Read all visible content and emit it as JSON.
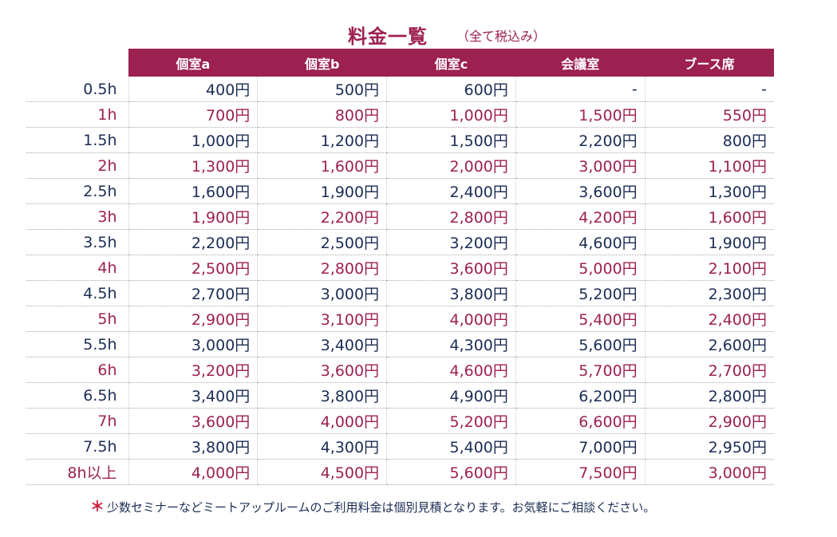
{
  "header": {
    "title": "料金一覧",
    "tax_note": "（全て税込み）"
  },
  "columns": [
    "個室a",
    "個室b",
    "個室c",
    "会議室",
    "ブース席"
  ],
  "rows": [
    {
      "duration": "0.5h",
      "values": [
        "400円",
        "500円",
        "600円",
        "-",
        "-"
      ]
    },
    {
      "duration": "1h",
      "values": [
        "700円",
        "800円",
        "1,000円",
        "1,500円",
        "550円"
      ]
    },
    {
      "duration": "1.5h",
      "values": [
        "1,000円",
        "1,200円",
        "1,500円",
        "2,200円",
        "800円"
      ]
    },
    {
      "duration": "2h",
      "values": [
        "1,300円",
        "1,600円",
        "2,000円",
        "3,000円",
        "1,100円"
      ]
    },
    {
      "duration": "2.5h",
      "values": [
        "1,600円",
        "1,900円",
        "2,400円",
        "3,600円",
        "1,300円"
      ]
    },
    {
      "duration": "3h",
      "values": [
        "1,900円",
        "2,200円",
        "2,800円",
        "4,200円",
        "1,600円"
      ]
    },
    {
      "duration": "3.5h",
      "values": [
        "2,200円",
        "2,500円",
        "3,200円",
        "4,600円",
        "1,900円"
      ]
    },
    {
      "duration": "4h",
      "values": [
        "2,500円",
        "2,800円",
        "3,600円",
        "5,000円",
        "2,100円"
      ]
    },
    {
      "duration": "4.5h",
      "values": [
        "2,700円",
        "3,000円",
        "3,800円",
        "5,200円",
        "2,300円"
      ]
    },
    {
      "duration": "5h",
      "values": [
        "2,900円",
        "3,100円",
        "4,000円",
        "5,400円",
        "2,400円"
      ]
    },
    {
      "duration": "5.5h",
      "values": [
        "3,000円",
        "3,400円",
        "4,300円",
        "5,600円",
        "2,600円"
      ]
    },
    {
      "duration": "6h",
      "values": [
        "3,200円",
        "3,600円",
        "4,600円",
        "5,700円",
        "2,700円"
      ]
    },
    {
      "duration": "6.5h",
      "values": [
        "3,400円",
        "3,800円",
        "4,900円",
        "6,200円",
        "2,800円"
      ]
    },
    {
      "duration": "7h",
      "values": [
        "3,600円",
        "4,000円",
        "5,200円",
        "6,600円",
        "2,900円"
      ]
    },
    {
      "duration": "7.5h",
      "values": [
        "3,800円",
        "4,300円",
        "5,400円",
        "7,000円",
        "2,950円"
      ]
    },
    {
      "duration": "8h以上",
      "values": [
        "4,000円",
        "4,500円",
        "5,600円",
        "7,500円",
        "3,000円"
      ]
    }
  ],
  "footnote": {
    "mark": "＊",
    "text": "少数セミナーなどミートアップルームのご利用料金は個別見積となります。お気軽にご相談ください。"
  },
  "colors": {
    "accent": "#9c2050",
    "navy": "#1b2d54",
    "asterisk": "#d0203a"
  }
}
